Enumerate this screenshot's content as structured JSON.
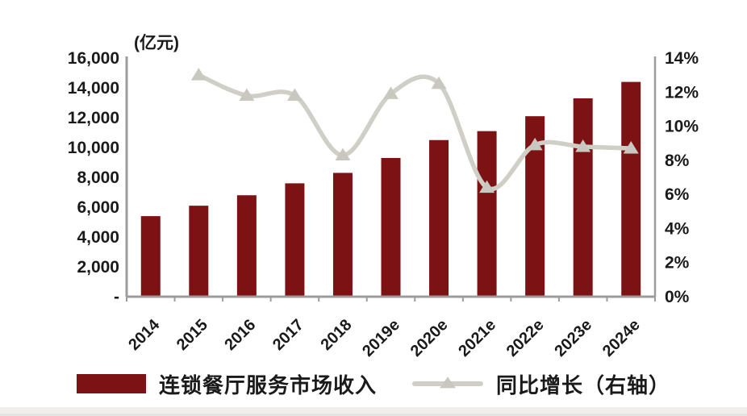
{
  "page": {
    "background": "#ffffff",
    "footer_strip_color": "#f1efee"
  },
  "colors": {
    "bar": "#7D1215",
    "line": "#CFCFC8",
    "marker": "#C8C8C0",
    "axis": "#9C9C9C",
    "text": "#1A1A1A"
  },
  "chart_data": {
    "type": "bar",
    "subtype": "bar+line-combo",
    "title": "",
    "unit_label": "(亿元)",
    "grid": false,
    "legend_position": "bottom",
    "categories": [
      "2014",
      "2015",
      "2016",
      "2017",
      "2018",
      "2019e",
      "2020e",
      "2021e",
      "2022e",
      "2023e",
      "2024e"
    ],
    "series": [
      {
        "name": "连锁餐厅服务市场收入",
        "type": "bar",
        "axis": "left",
        "unit": "亿元",
        "color": "#7D1215",
        "values": [
          5400,
          6100,
          6800,
          7600,
          8300,
          9300,
          10500,
          11100,
          12100,
          13300,
          14400
        ]
      },
      {
        "name": "同比增长（右轴）",
        "type": "line",
        "axis": "right",
        "unit": "%",
        "color": "#CFCFC8",
        "marker": "triangle-up",
        "marker_color": "#C8C8C0",
        "values": [
          null,
          13.0,
          11.8,
          11.8,
          8.3,
          11.9,
          12.5,
          6.4,
          8.9,
          8.8,
          8.7
        ]
      }
    ],
    "left_axis": {
      "min": 0,
      "max": 16000,
      "step": 2000,
      "tick_labels_bottom_up": [
        "-",
        "2,000",
        "4,000",
        "6,000",
        "8,000",
        "10,000",
        "12,000",
        "14,000",
        "16,000"
      ]
    },
    "right_axis": {
      "min": 0,
      "max": 14,
      "step": 2,
      "tick_labels_bottom_up": [
        "0%",
        "2%",
        "4%",
        "6%",
        "8%",
        "10%",
        "12%",
        "14%"
      ]
    }
  },
  "legend": {
    "bar_label": "连锁餐厅服务市场收入",
    "line_label": "同比增长（右轴）"
  }
}
